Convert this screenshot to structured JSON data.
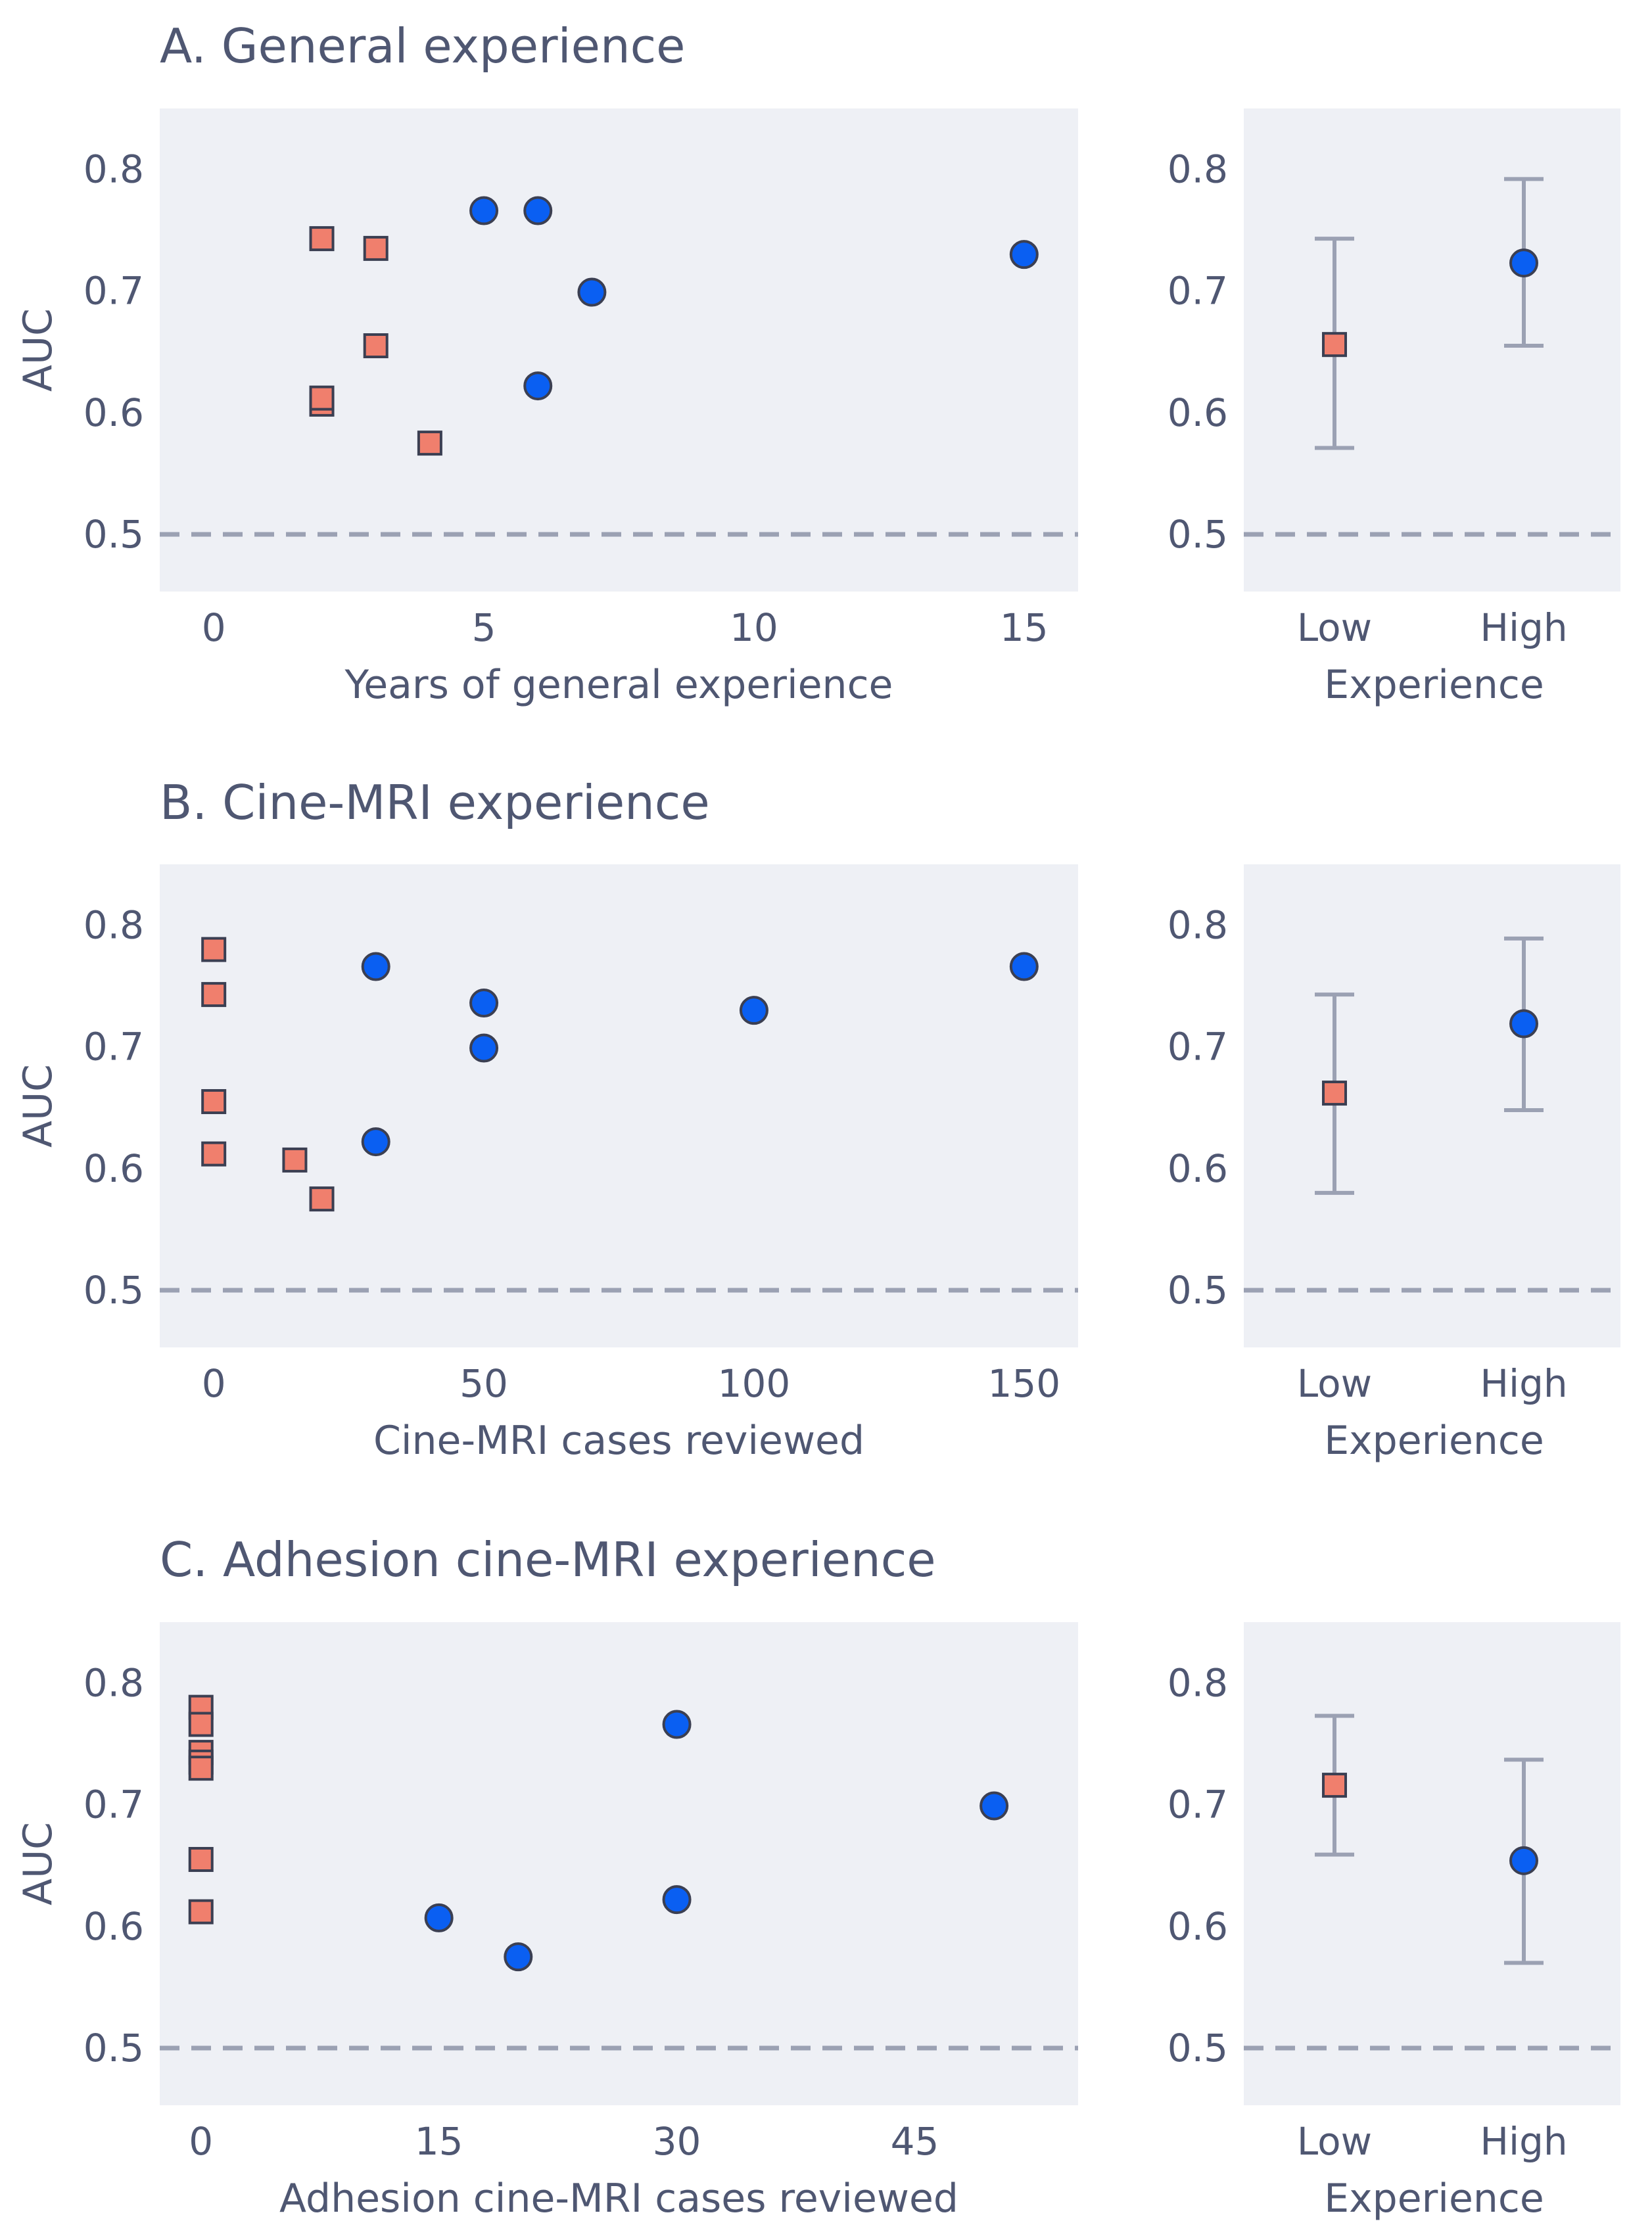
{
  "colors": {
    "plot_bg": "#eef0f5",
    "text": "#4f5772",
    "low_marker": "#f07f6d",
    "high_marker": "#0a5ff2",
    "marker_edge": "#3b3f52",
    "error_bar": "#9ba1b3",
    "reference_line": "#9ba1b3"
  },
  "chart_data": [
    {
      "type": "scatter",
      "title": "A. General experience",
      "xlabel": "Years of general experience",
      "ylabel": "AUC",
      "xlim": [
        -1,
        16
      ],
      "ylim": [
        0.453,
        0.85
      ],
      "xticks": [
        0,
        5,
        10,
        15
      ],
      "yticks": [
        0.5,
        0.6,
        0.7,
        0.8
      ],
      "reference_line": 0.5,
      "series": [
        {
          "name": "Low",
          "marker": "square",
          "x": [
            2,
            2,
            2,
            3,
            3,
            4
          ],
          "y": [
            0.743,
            0.607,
            0.612,
            0.735,
            0.655,
            0.575
          ]
        },
        {
          "name": "High",
          "marker": "circle",
          "x": [
            5,
            6,
            6,
            7,
            15
          ],
          "y": [
            0.766,
            0.766,
            0.622,
            0.699,
            0.73
          ]
        }
      ]
    },
    {
      "type": "errorbar",
      "xlabel": "Experience",
      "ylabel": "",
      "categories": [
        "Low",
        "High"
      ],
      "ylim": [
        0.453,
        0.85
      ],
      "yticks": [
        0.5,
        0.6,
        0.7,
        0.8
      ],
      "reference_line": 0.5,
      "means": [
        0.656,
        0.723
      ],
      "lower": [
        0.571,
        0.655
      ],
      "upper": [
        0.743,
        0.792
      ]
    },
    {
      "type": "scatter",
      "title": "B. Cine-MRI experience",
      "xlabel": "Cine-MRI cases reviewed",
      "ylabel": "AUC",
      "xlim": [
        -10,
        160
      ],
      "ylim": [
        0.453,
        0.85
      ],
      "xticks": [
        0,
        50,
        100,
        150
      ],
      "yticks": [
        0.5,
        0.6,
        0.7,
        0.8
      ],
      "reference_line": 0.5,
      "series": [
        {
          "name": "Low",
          "marker": "square",
          "x": [
            0,
            0,
            0,
            0,
            15,
            20
          ],
          "y": [
            0.78,
            0.743,
            0.655,
            0.612,
            0.607,
            0.575
          ]
        },
        {
          "name": "High",
          "marker": "circle",
          "x": [
            30,
            30,
            50,
            50,
            100,
            150
          ],
          "y": [
            0.766,
            0.622,
            0.736,
            0.699,
            0.73,
            0.766
          ]
        }
      ]
    },
    {
      "type": "errorbar",
      "xlabel": "Experience",
      "ylabel": "",
      "categories": [
        "Low",
        "High"
      ],
      "ylim": [
        0.453,
        0.85
      ],
      "yticks": [
        0.5,
        0.6,
        0.7,
        0.8
      ],
      "reference_line": 0.5,
      "means": [
        0.662,
        0.719
      ],
      "lower": [
        0.58,
        0.648
      ],
      "upper": [
        0.743,
        0.789
      ]
    },
    {
      "type": "scatter",
      "title": "C. Adhesion cine-MRI experience",
      "xlabel": "Adhesion cine-MRI cases reviewed",
      "ylabel": "AUC",
      "xlim": [
        -2.6,
        55.3
      ],
      "ylim": [
        0.453,
        0.85
      ],
      "xticks": [
        0,
        15,
        30,
        45
      ],
      "yticks": [
        0.5,
        0.6,
        0.7,
        0.8
      ],
      "reference_line": 0.5,
      "series": [
        {
          "name": "Low",
          "marker": "square",
          "x": [
            0,
            0,
            0,
            0,
            0,
            0,
            0
          ],
          "y": [
            0.78,
            0.766,
            0.743,
            0.735,
            0.73,
            0.655,
            0.612
          ]
        },
        {
          "name": "High",
          "marker": "circle",
          "x": [
            15,
            20,
            30,
            30,
            50
          ],
          "y": [
            0.607,
            0.575,
            0.766,
            0.622,
            0.699
          ]
        }
      ]
    },
    {
      "type": "errorbar",
      "xlabel": "Experience",
      "ylabel": "",
      "categories": [
        "Low",
        "High"
      ],
      "ylim": [
        0.453,
        0.85
      ],
      "yticks": [
        0.5,
        0.6,
        0.7,
        0.8
      ],
      "reference_line": 0.5,
      "means": [
        0.716,
        0.654
      ],
      "lower": [
        0.659,
        0.57
      ],
      "upper": [
        0.773,
        0.737
      ]
    }
  ]
}
